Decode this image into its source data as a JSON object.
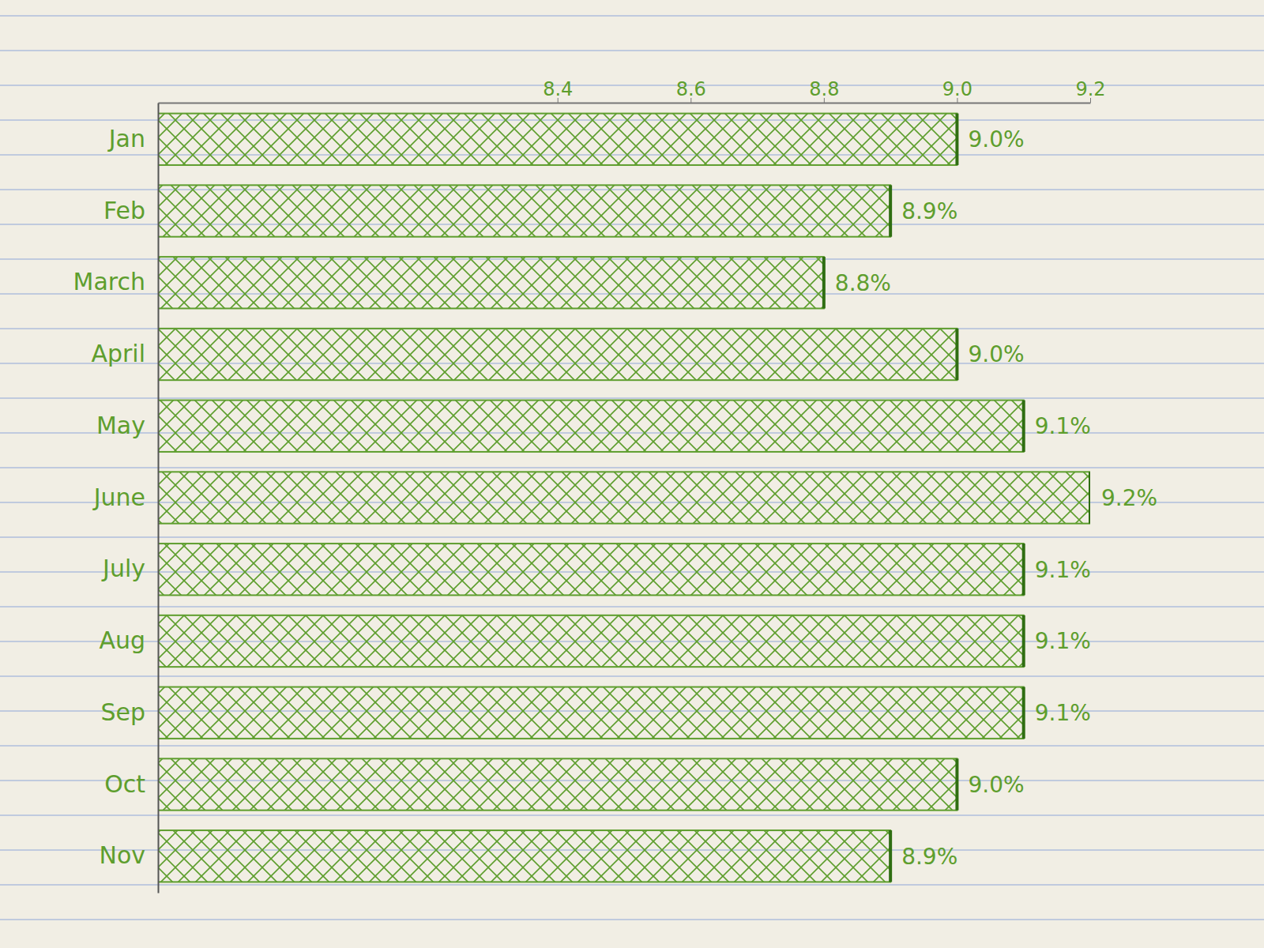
{
  "chart_data": {
    "type": "bar",
    "orientation": "horizontal",
    "categories": [
      "Jan",
      "Feb",
      "March",
      "April",
      "May",
      "June",
      "July",
      "Aug",
      "Sep",
      "Oct",
      "Nov"
    ],
    "values": [
      9.0,
      8.9,
      8.8,
      9.0,
      9.1,
      9.2,
      9.1,
      9.1,
      9.1,
      9.0,
      8.9
    ],
    "value_labels": [
      "9.0%",
      "8.9%",
      "8.8%",
      "9.0%",
      "9.1%",
      "9.2%",
      "9.1%",
      "9.1%",
      "9.1%",
      "9.0%",
      "8.9%"
    ],
    "data_labels": true,
    "color": "#5e9e2e",
    "xlim": [
      7.8,
      9.2
    ],
    "xticks": [
      8.4,
      8.6,
      8.8,
      {
        "value": 9,
        "label": "9.0"
      },
      9.2
    ],
    "grid": false
  }
}
